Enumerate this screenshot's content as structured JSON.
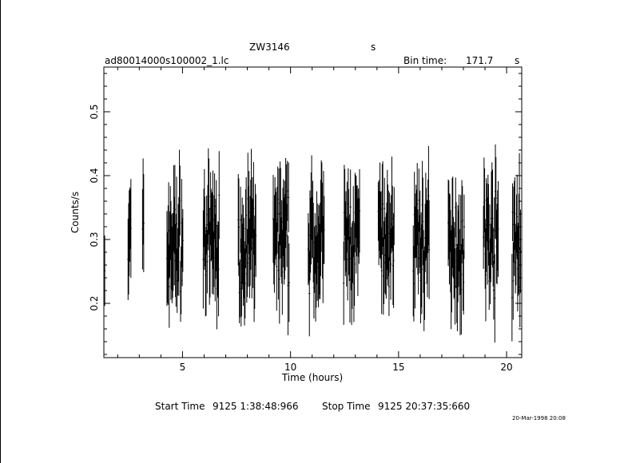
{
  "header": {
    "source_name": "ZW3146",
    "units_left": "s",
    "file_name": "ad80014000s100002_1.lc",
    "bin_time_label": "Bin time:",
    "bin_time_value": "171.7",
    "bin_time_unit": "s"
  },
  "footer": {
    "start_label": "Start Time",
    "start_value": "9125  1:38:48:966",
    "stop_label": "Stop Time",
    "stop_value": "9125 20:37:35:660",
    "plot_date": "20-Mar-1998 20:08"
  },
  "chart_data": {
    "type": "scatter",
    "title": "ZW3146",
    "xlabel": "Time (hours)",
    "ylabel": "Counts/s",
    "xlim": [
      1.36,
      20.7
    ],
    "ylim": [
      0.115,
      0.57
    ],
    "xticks": [
      5,
      10,
      15,
      20
    ],
    "yticks": [
      0.2,
      0.3,
      0.4,
      0.5
    ],
    "grid": false,
    "error_bars": true,
    "segments": [
      {
        "x_start": 1.4,
        "x_end": 1.42
      },
      {
        "x_start": 2.48,
        "x_end": 2.62
      },
      {
        "x_start": 3.15,
        "x_end": 3.22
      },
      {
        "x_start": 4.28,
        "x_end": 5.02
      },
      {
        "x_start": 5.96,
        "x_end": 6.72
      },
      {
        "x_start": 7.58,
        "x_end": 8.4
      },
      {
        "x_start": 9.2,
        "x_end": 9.95
      },
      {
        "x_start": 10.82,
        "x_end": 11.58
      },
      {
        "x_start": 12.46,
        "x_end": 13.2
      },
      {
        "x_start": 14.06,
        "x_end": 14.82
      },
      {
        "x_start": 15.68,
        "x_end": 16.44
      },
      {
        "x_start": 17.3,
        "x_end": 18.05
      },
      {
        "x_start": 18.93,
        "x_end": 19.62
      },
      {
        "x_start": 20.25,
        "x_end": 20.65
      }
    ],
    "y_band": [
      0.16,
      0.46
    ]
  }
}
